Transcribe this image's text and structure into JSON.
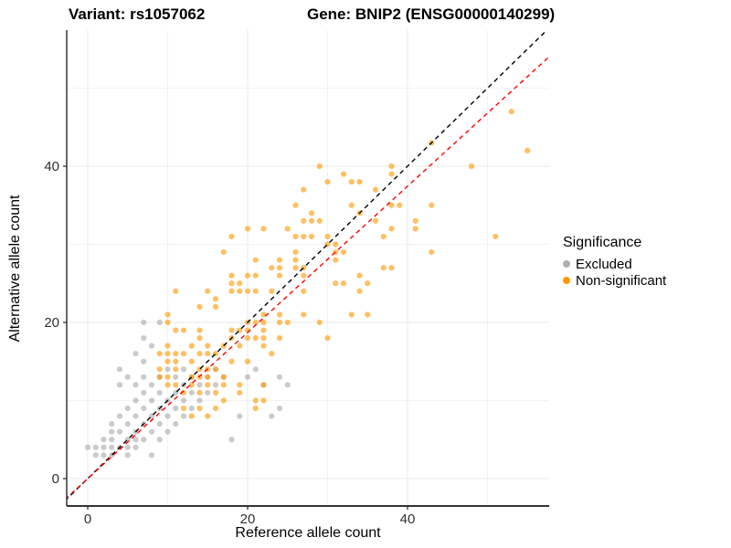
{
  "titles": {
    "variant": "Variant: rs1057062",
    "gene": "Gene: BNIP2 (ENSG00000140299)"
  },
  "axes": {
    "x": {
      "label": "Reference allele count",
      "major_ticks": [
        0,
        20,
        40
      ],
      "minor_ticks": [
        10,
        30,
        50
      ],
      "range": [
        -2.6,
        57.7
      ]
    },
    "y": {
      "label": "Alternative allele count",
      "major_ticks": [
        0,
        20,
        40
      ],
      "minor_ticks": [
        10,
        30,
        50
      ],
      "range": [
        -3.5,
        57.4
      ]
    }
  },
  "legend": {
    "title": "Significance",
    "items": [
      {
        "label": "Excluded",
        "color": "#b0b0b0"
      },
      {
        "label": "Non-significant",
        "color": "#ff9900"
      }
    ]
  },
  "colors": {
    "excluded_point": "#8c8c8c",
    "excluded_opacity": 0.45,
    "nonsig_point": "#ff9900",
    "nonsig_opacity": 0.62,
    "identity_line": "#000000",
    "fit_line": "#ff0000",
    "grid_major": "#e9e9e9",
    "grid_minor": "#f3f3f3",
    "axis_line": "#333333",
    "tick_text": "#303030"
  },
  "chart_data": {
    "type": "scatter",
    "title": "Variant: rs1057062 / Gene: BNIP2 (ENSG00000140299)",
    "xlabel": "Reference allele count",
    "ylabel": "Alternative allele count",
    "xlim": [
      -2.6,
      57.7
    ],
    "ylim": [
      -3.5,
      57.4
    ],
    "grid": true,
    "legend_position": "right",
    "lines": [
      {
        "name": "identity",
        "slope": 1.0,
        "intercept": 0,
        "style": "dashed",
        "color": "#000000"
      },
      {
        "name": "fit",
        "slope": 0.936,
        "intercept": 0,
        "style": "dashed",
        "color": "#ff0000"
      }
    ],
    "series": [
      {
        "name": "Excluded",
        "points": [
          [
            0,
            4
          ],
          [
            1,
            3
          ],
          [
            1,
            4
          ],
          [
            2,
            3
          ],
          [
            2,
            4
          ],
          [
            2,
            5
          ],
          [
            3,
            3
          ],
          [
            3,
            4
          ],
          [
            3,
            5
          ],
          [
            3,
            6
          ],
          [
            3,
            7
          ],
          [
            4,
            4
          ],
          [
            4,
            6
          ],
          [
            4,
            8
          ],
          [
            4,
            12
          ],
          [
            4,
            14
          ],
          [
            5,
            3
          ],
          [
            5,
            4
          ],
          [
            5,
            5
          ],
          [
            5,
            7
          ],
          [
            5,
            9
          ],
          [
            5,
            13
          ],
          [
            6,
            4
          ],
          [
            6,
            5
          ],
          [
            6,
            6
          ],
          [
            6,
            8
          ],
          [
            6,
            10
          ],
          [
            6,
            12
          ],
          [
            6,
            16
          ],
          [
            7,
            5
          ],
          [
            7,
            7
          ],
          [
            7,
            9
          ],
          [
            7,
            11
          ],
          [
            7,
            13
          ],
          [
            7,
            15
          ],
          [
            7,
            18
          ],
          [
            7,
            20
          ],
          [
            8,
            3
          ],
          [
            8,
            6
          ],
          [
            8,
            8
          ],
          [
            8,
            10
          ],
          [
            8,
            12
          ],
          [
            8,
            17
          ],
          [
            9,
            5
          ],
          [
            9,
            7
          ],
          [
            9,
            9
          ],
          [
            9,
            11
          ],
          [
            9,
            13
          ],
          [
            9,
            20
          ],
          [
            10,
            6
          ],
          [
            10,
            8
          ],
          [
            10,
            10
          ],
          [
            10,
            14
          ],
          [
            11,
            7
          ],
          [
            11,
            9
          ],
          [
            11,
            11
          ],
          [
            11,
            13
          ],
          [
            12,
            8
          ],
          [
            12,
            10
          ],
          [
            12,
            12
          ],
          [
            12,
            14
          ],
          [
            13,
            9
          ],
          [
            13,
            11
          ],
          [
            13,
            13
          ],
          [
            14,
            10
          ],
          [
            14,
            12
          ],
          [
            15,
            11
          ],
          [
            15,
            13
          ],
          [
            16,
            12
          ],
          [
            16,
            14
          ],
          [
            17,
            13
          ],
          [
            18,
            5
          ],
          [
            19,
            8
          ],
          [
            23,
            8
          ],
          [
            20,
            13
          ],
          [
            21,
            14
          ],
          [
            22,
            12
          ],
          [
            24,
            13
          ],
          [
            25,
            12
          ],
          [
            24,
            9
          ]
        ]
      },
      {
        "name": "Non-significant",
        "points": [
          [
            9,
            16
          ],
          [
            10,
            16
          ],
          [
            11,
            16
          ],
          [
            14,
            16
          ],
          [
            15,
            16
          ],
          [
            9,
            14
          ],
          [
            11,
            14
          ],
          [
            14,
            14
          ],
          [
            15,
            14
          ],
          [
            16,
            14
          ],
          [
            9,
            13
          ],
          [
            10,
            13
          ],
          [
            13,
            13
          ],
          [
            14,
            13
          ],
          [
            15,
            13
          ],
          [
            17,
            13
          ],
          [
            10,
            12
          ],
          [
            11,
            12
          ],
          [
            13,
            12
          ],
          [
            15,
            12
          ],
          [
            16,
            11
          ],
          [
            17,
            12
          ],
          [
            12,
            11
          ],
          [
            14,
            11
          ],
          [
            12,
            9
          ],
          [
            13,
            8
          ],
          [
            14,
            9
          ],
          [
            15,
            8
          ],
          [
            16,
            9
          ],
          [
            17,
            10
          ],
          [
            10,
            15
          ],
          [
            11,
            15
          ],
          [
            13,
            15
          ],
          [
            10,
            17
          ],
          [
            12,
            16
          ],
          [
            13,
            17
          ],
          [
            15,
            17
          ],
          [
            16,
            16
          ],
          [
            17,
            17
          ],
          [
            14,
            18
          ],
          [
            12,
            19
          ],
          [
            11,
            19
          ],
          [
            10,
            20
          ],
          [
            10,
            21
          ],
          [
            11,
            24
          ],
          [
            19,
            11
          ],
          [
            19,
            12
          ],
          [
            21,
            9
          ],
          [
            21,
            10
          ],
          [
            22,
            10
          ],
          [
            22,
            12
          ],
          [
            18,
            15
          ],
          [
            20,
            15
          ],
          [
            19,
            17
          ],
          [
            22,
            17
          ],
          [
            23,
            16
          ],
          [
            18,
            18
          ],
          [
            20,
            18
          ],
          [
            21,
            18
          ],
          [
            22,
            18
          ],
          [
            24,
            18
          ],
          [
            30,
            18
          ],
          [
            14,
            19
          ],
          [
            18,
            19
          ],
          [
            19,
            19
          ],
          [
            20,
            19
          ],
          [
            22,
            19
          ],
          [
            29,
            20
          ],
          [
            20,
            20
          ],
          [
            21,
            20
          ],
          [
            22,
            20
          ],
          [
            24,
            20
          ],
          [
            25,
            20
          ],
          [
            22,
            21
          ],
          [
            24,
            21
          ],
          [
            27,
            21
          ],
          [
            33,
            21
          ],
          [
            35,
            21
          ],
          [
            14,
            22
          ],
          [
            16,
            22
          ],
          [
            16,
            23
          ],
          [
            15,
            24
          ],
          [
            18,
            24
          ],
          [
            19,
            24
          ],
          [
            20,
            24
          ],
          [
            21,
            24
          ],
          [
            23,
            24
          ],
          [
            27,
            24
          ],
          [
            34,
            24
          ],
          [
            18,
            25
          ],
          [
            19,
            25
          ],
          [
            31,
            25
          ],
          [
            32,
            25
          ],
          [
            35,
            25
          ],
          [
            18,
            26
          ],
          [
            20,
            26
          ],
          [
            21,
            26
          ],
          [
            24,
            26
          ],
          [
            27,
            26
          ],
          [
            34,
            26
          ],
          [
            23,
            27
          ],
          [
            24,
            27
          ],
          [
            26,
            27
          ],
          [
            27,
            27
          ],
          [
            37,
            27
          ],
          [
            38,
            27
          ],
          [
            21,
            28
          ],
          [
            24,
            28
          ],
          [
            26,
            28
          ],
          [
            31,
            28
          ],
          [
            17,
            29
          ],
          [
            26,
            29
          ],
          [
            31,
            29
          ],
          [
            32,
            29
          ],
          [
            43,
            29
          ],
          [
            30,
            30
          ],
          [
            31,
            30
          ],
          [
            18,
            31
          ],
          [
            26,
            31
          ],
          [
            27,
            31
          ],
          [
            28,
            31
          ],
          [
            30,
            31
          ],
          [
            37,
            31
          ],
          [
            51,
            31
          ],
          [
            20,
            32
          ],
          [
            22,
            32
          ],
          [
            25,
            32
          ],
          [
            38,
            32
          ],
          [
            41,
            32
          ],
          [
            27,
            33
          ],
          [
            28,
            33
          ],
          [
            29,
            33
          ],
          [
            36,
            33
          ],
          [
            41,
            33
          ],
          [
            28,
            34
          ],
          [
            34,
            34
          ],
          [
            26,
            35
          ],
          [
            33,
            35
          ],
          [
            38,
            35
          ],
          [
            39,
            35
          ],
          [
            43,
            35
          ],
          [
            36,
            37
          ],
          [
            27,
            37
          ],
          [
            30,
            38
          ],
          [
            33,
            38
          ],
          [
            34,
            38
          ],
          [
            32,
            39
          ],
          [
            38,
            39
          ],
          [
            29,
            40
          ],
          [
            38,
            40
          ],
          [
            48,
            40
          ],
          [
            55,
            42
          ],
          [
            43,
            43
          ],
          [
            53,
            47
          ]
        ]
      }
    ]
  }
}
